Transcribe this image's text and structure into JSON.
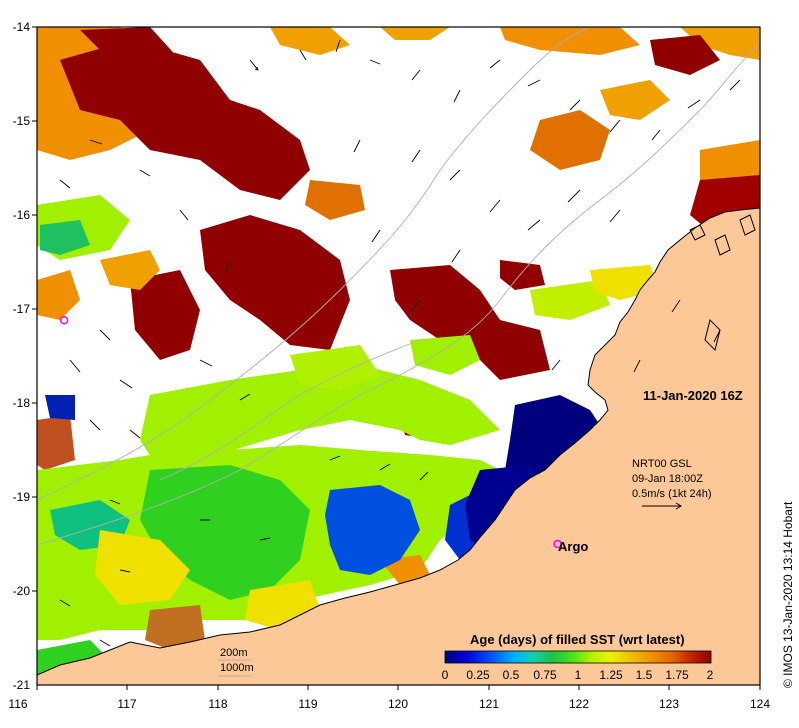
{
  "map": {
    "title": "11-Jan-2020 16Z",
    "credit": "© IMOS 13-Jan-2020 13:14 Hobart",
    "lon_ticks": [
      "116",
      "117",
      "118",
      "119",
      "120",
      "121",
      "122",
      "123",
      "124"
    ],
    "lat_ticks": [
      "-14",
      "-15",
      "-16",
      "-17",
      "-18",
      "-19",
      "-20",
      "-21"
    ],
    "lon_range": [
      116,
      124
    ],
    "lat_range": [
      -21,
      -14
    ],
    "current_legend": {
      "line1": "NRT00 GSL",
      "line2": "09-Jan 18:00Z",
      "line3": "0.5m/s (1kt 24h)"
    },
    "argo": {
      "label": "Argo",
      "floats": [
        {
          "lon": 121.76,
          "lat": -19.5
        },
        {
          "lon": 116.3,
          "lat": -17.12
        }
      ]
    },
    "isobaths": {
      "label_200": "200m",
      "label_1000": "1000m"
    },
    "colorbar": {
      "title": "Age (days) of filled SST (wrt latest)",
      "ticks": [
        "0",
        "0.25",
        "0.5",
        "0.75",
        "1",
        "1.25",
        "1.5",
        "1.75",
        "2"
      ],
      "colors": [
        "#00007f",
        "#0000d8",
        "#0040ff",
        "#00a0ff",
        "#10d0c0",
        "#20c060",
        "#30e020",
        "#a0f000",
        "#f0f000",
        "#f0c000",
        "#f09000",
        "#e06000",
        "#c02000",
        "#900000"
      ]
    },
    "colors": {
      "land": "#fcc898",
      "coast": "#000000",
      "isobath": "#b0b0b0",
      "argo": "#ff00ff"
    }
  }
}
